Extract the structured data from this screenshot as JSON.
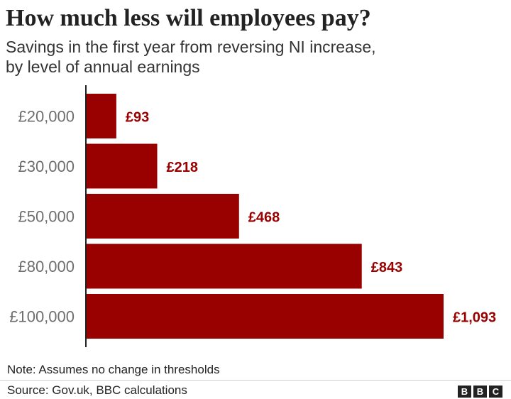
{
  "title": "How much less will employees pay?",
  "subtitle": [
    "Savings in the first year from reversing NI increase,",
    "by level of annual earnings"
  ],
  "note": "Note: Assumes no change in thresholds",
  "source": "Source: Gov.uk, BBC calculations",
  "logo_letters": [
    "B",
    "B",
    "C"
  ],
  "colors": {
    "bar": "#990000",
    "value_label": "#990000",
    "category_label": "#6e6e6e",
    "axis": "#222222"
  },
  "chart_data": {
    "type": "bar",
    "orientation": "horizontal",
    "categories": [
      "£20,000",
      "£30,000",
      "£50,000",
      "£80,000",
      "£100,000"
    ],
    "values": [
      93,
      218,
      468,
      843,
      1093
    ],
    "value_labels": [
      "£93",
      "£218",
      "£468",
      "£843",
      "£1,093"
    ],
    "xlim": [
      0,
      1093
    ],
    "grid": false,
    "legend": "none"
  }
}
